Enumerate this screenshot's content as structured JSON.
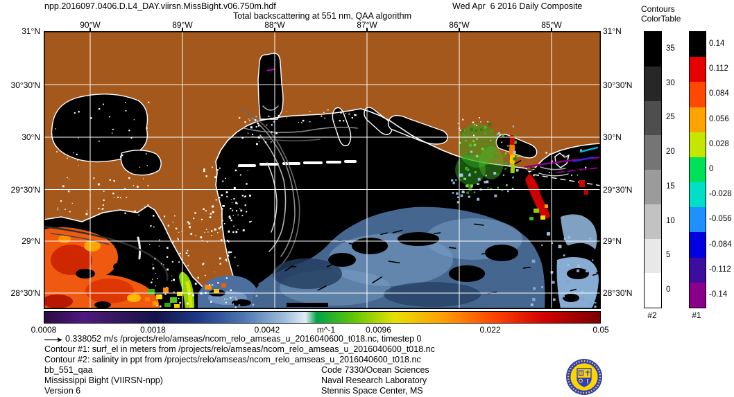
{
  "header": {
    "filename": "npp.2016097.0406.D.L4_DAY.viirsn.MissBight.v06.750m.hdf",
    "composite": "Wed Apr  6 2016 Daily Composite",
    "title": "Total backscattering at 551 nm, QAA algorithm"
  },
  "axes": {
    "lon": [
      "90°W",
      "89°W",
      "88°W",
      "87°W",
      "86°W",
      "85°W"
    ],
    "lat": [
      "31°N",
      "30°30'N",
      "30°N",
      "29°30'N",
      "29°N",
      "28°30'N"
    ]
  },
  "colorbar": {
    "unit": "m^-1",
    "scale": "log",
    "ticks": [
      "0.0008",
      "0.0018",
      "0.0042",
      "0.0096",
      "0.022",
      "0.05"
    ],
    "tick_values": [
      0.0008,
      0.0018,
      0.0042,
      0.0096,
      0.022,
      0.05
    ],
    "gradient": [
      [
        "0%",
        "#2b0a42"
      ],
      [
        "7%",
        "#4d1a80"
      ],
      [
        "13%",
        "#35175e"
      ],
      [
        "20%",
        "#15134b"
      ],
      [
        "28%",
        "#1f3a8a"
      ],
      [
        "36%",
        "#4d78b3"
      ],
      [
        "43%",
        "#9cbcdc"
      ],
      [
        "47%",
        "#e2edf5"
      ],
      [
        "49%",
        "#00a348"
      ],
      [
        "56%",
        "#66c800"
      ],
      [
        "63%",
        "#e6e000"
      ],
      [
        "72%",
        "#ff9d00"
      ],
      [
        "81%",
        "#ff4400"
      ],
      [
        "90%",
        "#d10000"
      ],
      [
        "100%",
        "#7a0000"
      ]
    ]
  },
  "contour_legend": {
    "title1": "Contours",
    "title2": "ColorTable",
    "bar2": {
      "label": "#2",
      "values": [
        "35",
        "30",
        "25",
        "20",
        "15",
        "10",
        "5",
        "0"
      ],
      "colors": [
        "#000000",
        "#272727",
        "#4e4e4e",
        "#757575",
        "#9b9b9b",
        "#c2c2c2",
        "#e8e8e8",
        "#ffffff"
      ]
    },
    "bar1": {
      "label": "#1",
      "values": [
        "0.14",
        "0.112",
        "0.084",
        "0.056",
        "0.028",
        "0",
        "-0.028",
        "-0.056",
        "-0.084",
        "-0.112",
        "-0.14"
      ],
      "colors": [
        "#000000",
        "#e60000",
        "#ff4800",
        "#ffa300",
        "#c4e600",
        "#00e157",
        "#00dfc8",
        "#1e90ff",
        "#0000e0",
        "#3d0d9e",
        "#8b008b"
      ]
    }
  },
  "annotations": {
    "vector_scale": "0.338052 m/s /projects/relo/amseas/ncom_relo_amseas_u_2016040600_t018.nc, timestep 0",
    "contour1": "Contour #1: surf_el in meters from /projects/relo/amseas/ncom_relo_amseas_u_2016040600_t018.nc",
    "contour2": "Contour #2: salinity in ppt from /projects/relo/amseas/ncom_relo_amseas_u_2016040600_t018.nc"
  },
  "footer": {
    "product": "bb_551_qaa",
    "region": "Mississippi Bight (VIIRSN-npp)",
    "version": "Version 6",
    "code": "Code 7330/Ocean Sciences",
    "org": "Naval Research Laboratory",
    "location": "Stennis Space Center, MS"
  },
  "map_colors": {
    "land": "#a4581c",
    "ocean": "#000000",
    "coastline": "#ffffff",
    "graticule": "#ffffff"
  },
  "chart_data": {
    "type": "heatmap",
    "title": "Total backscattering at 551 nm, QAA algorithm",
    "units": "m^-1",
    "colorbar_range": [
      0.0008,
      0.05
    ],
    "colorbar_scale": "log",
    "colorbar_ticks": [
      0.0008,
      0.0018,
      0.0042,
      0.0096,
      0.022,
      0.05
    ],
    "x_axis": {
      "label": "longitude",
      "ticks": [
        "90°W",
        "89°W",
        "88°W",
        "87°W",
        "86°W",
        "85°W"
      ]
    },
    "y_axis": {
      "label": "latitude",
      "ticks": [
        "31°N",
        "30°30'N",
        "30°N",
        "29°30'N",
        "29°N",
        "28°30'N"
      ]
    },
    "overlays": [
      {
        "name": "current vectors",
        "reference_speed": "0.338052 m/s",
        "source": "ncom_relo_amseas_u_2016040600_t018.nc",
        "timestep": 0
      },
      {
        "name": "Contour #1: surf_el (meters)",
        "levels": [
          0.14,
          0.112,
          0.084,
          0.056,
          0.028,
          0,
          -0.028,
          -0.056,
          -0.084,
          -0.112,
          -0.14
        ]
      },
      {
        "name": "Contour #2: salinity (ppt)",
        "levels": [
          35,
          30,
          25,
          20,
          15,
          10,
          5,
          0
        ]
      }
    ]
  }
}
